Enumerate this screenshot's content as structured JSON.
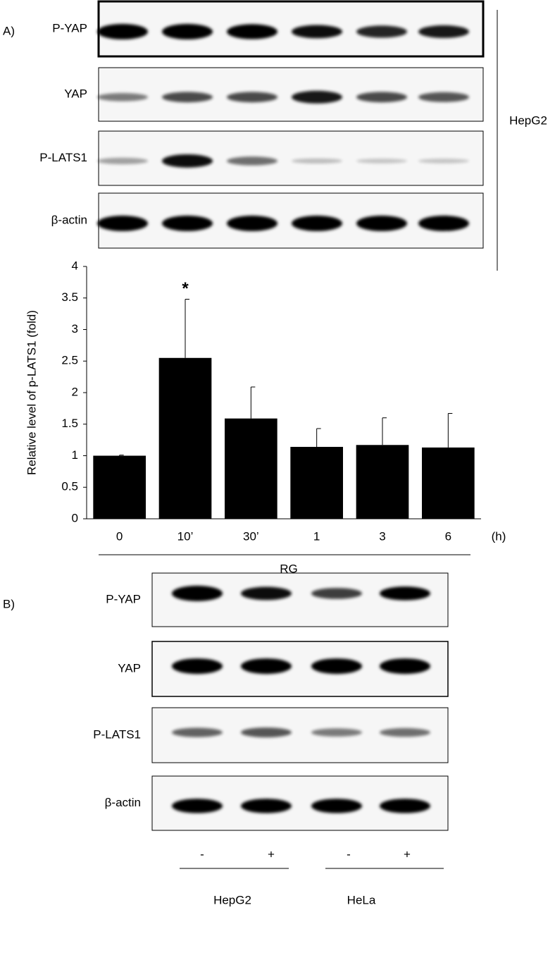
{
  "panel_a": {
    "label": "A)",
    "blot_labels": [
      "P-YAP",
      "YAP",
      "P-LATS1",
      "β-actin"
    ],
    "cell_line": "HepG2"
  },
  "chart_data": {
    "type": "bar",
    "ylabel": "Relative level of p-LATS1 (fold)",
    "categories": [
      "0",
      "10’",
      "30’",
      "1",
      "3",
      "6"
    ],
    "values": [
      1.0,
      2.55,
      1.59,
      1.14,
      1.17,
      1.13
    ],
    "errors": [
      0.01,
      0.93,
      0.5,
      0.29,
      0.43,
      0.54
    ],
    "color": "#000000",
    "ylim": [
      0,
      4
    ],
    "yticks": [
      0,
      0.5,
      1,
      1.5,
      2,
      2.5,
      3,
      3.5,
      4
    ],
    "x_unit": "(h)",
    "group_label": "RG",
    "annotation": "*"
  },
  "panel_b": {
    "label": "B)",
    "blot_labels": [
      "P-YAP",
      "YAP",
      "P-LATS1",
      "β-actin"
    ],
    "treatment": [
      "-",
      "+",
      "-",
      "+"
    ],
    "groups": [
      "HepG2",
      "HeLa"
    ]
  }
}
